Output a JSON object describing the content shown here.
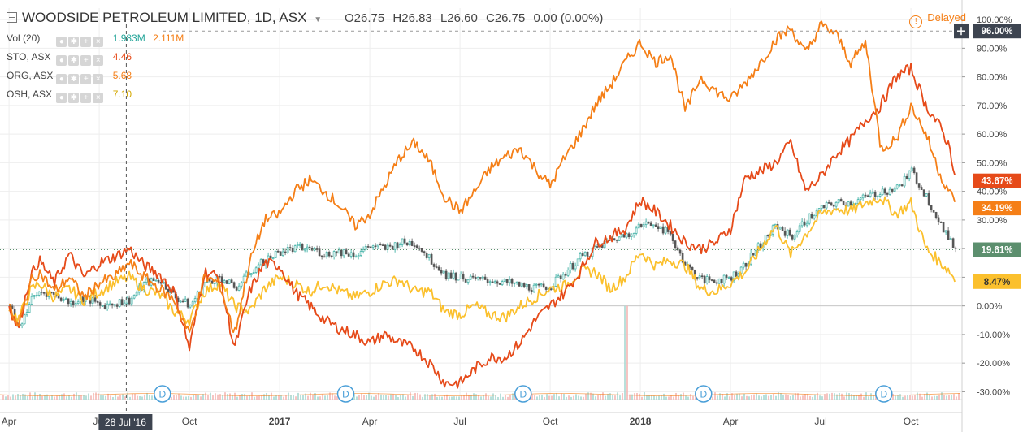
{
  "header": {
    "title": "WOODSIDE PETROLEUM LIMITED, 1D, ASX",
    "open": "O26.75",
    "high": "H26.83",
    "low": "L26.60",
    "close": "C26.75",
    "change": "0.00 (0.00%)",
    "delayed": "Delayed"
  },
  "legend": [
    {
      "label": "Vol (20)",
      "value": "1.983M",
      "value2": "2.111M",
      "color": "#26a69a",
      "color2": "#f57f17"
    },
    {
      "label": "STO, ASX",
      "value": "4.46",
      "color": "#e64a19"
    },
    {
      "label": "ORG, ASX",
      "value": "5.68",
      "color": "#f57f17"
    },
    {
      "label": "OSH, ASX",
      "value": "7.10",
      "color": "#fbc02d"
    }
  ],
  "crosshair_label": "28 Jul '16",
  "dividend_marker": "D",
  "price_badges": [
    {
      "text": "96.00%",
      "value": 96.0,
      "color": "#3d4450"
    },
    {
      "text": "43.67%",
      "value": 43.67,
      "color": "#e64a19"
    },
    {
      "text": "34.19%",
      "value": 34.19,
      "color": "#f57f17"
    },
    {
      "text": "19.61%",
      "value": 19.61,
      "color": "#5c8f6e"
    },
    {
      "text": "8.47%",
      "value": 8.47,
      "color": "#fbc02d"
    }
  ],
  "chart_data": {
    "type": "line",
    "title": "WOODSIDE PETROLEUM LIMITED, 1D, ASX",
    "x_labels": [
      "Apr",
      "Jul",
      "Oct",
      "2017",
      "Apr",
      "Jul",
      "Oct",
      "2018",
      "Apr",
      "Jul",
      "Oct"
    ],
    "x_label_t": [
      0,
      3,
      6,
      9,
      12,
      15,
      18,
      21,
      24,
      27,
      30
    ],
    "x_range": [
      -0.3,
      31.7
    ],
    "y_ticks": [
      -30,
      -20,
      -10,
      0,
      10,
      20,
      30,
      40,
      50,
      60,
      70,
      80,
      90,
      100
    ],
    "y_unit": "%",
    "ylim": [
      -33,
      104
    ],
    "grid": true,
    "crosshair_t": 3.9,
    "dividend_t": [
      5.1,
      11.2,
      17.1,
      23.1,
      29.1
    ],
    "series": [
      {
        "name": "WPL",
        "style": "candles",
        "color": "#26a69a",
        "color2": "#ef5350",
        "points": [
          [
            0,
            0
          ],
          [
            0.3,
            -8
          ],
          [
            0.7,
            2
          ],
          [
            1,
            5
          ],
          [
            1.5,
            4
          ],
          [
            2,
            1
          ],
          [
            2.5,
            3
          ],
          [
            3,
            0
          ],
          [
            3.5,
            1
          ],
          [
            4,
            2
          ],
          [
            4.5,
            8
          ],
          [
            5,
            9
          ],
          [
            5.5,
            3
          ],
          [
            6,
            0
          ],
          [
            6.5,
            8
          ],
          [
            7,
            10
          ],
          [
            7.5,
            6
          ],
          [
            8,
            12
          ],
          [
            8.5,
            16
          ],
          [
            9,
            19
          ],
          [
            9.5,
            20
          ],
          [
            10,
            20
          ],
          [
            10.5,
            18
          ],
          [
            11,
            19
          ],
          [
            11.5,
            18
          ],
          [
            12,
            21
          ],
          [
            12.5,
            20
          ],
          [
            13,
            22
          ],
          [
            13.5,
            22
          ],
          [
            14,
            16
          ],
          [
            14.5,
            11
          ],
          [
            15,
            10
          ],
          [
            15.5,
            9
          ],
          [
            16,
            9
          ],
          [
            16.5,
            8
          ],
          [
            17,
            7
          ],
          [
            17.5,
            6
          ],
          [
            18,
            7
          ],
          [
            18.5,
            12
          ],
          [
            19,
            17
          ],
          [
            19.5,
            20
          ],
          [
            20,
            23
          ],
          [
            20.5,
            25
          ],
          [
            21,
            28
          ],
          [
            21.5,
            29
          ],
          [
            22,
            24
          ],
          [
            22.5,
            14
          ],
          [
            23,
            9
          ],
          [
            23.5,
            9
          ],
          [
            24,
            10
          ],
          [
            24.5,
            15
          ],
          [
            25,
            22
          ],
          [
            25.5,
            28
          ],
          [
            26,
            24
          ],
          [
            26.5,
            30
          ],
          [
            27,
            34
          ],
          [
            27.5,
            36
          ],
          [
            28,
            36
          ],
          [
            28.5,
            38
          ],
          [
            29,
            40
          ],
          [
            29.5,
            41
          ],
          [
            30,
            47
          ],
          [
            30.5,
            38
          ],
          [
            31,
            28
          ],
          [
            31.3,
            22
          ],
          [
            31.5,
            19.61
          ]
        ]
      },
      {
        "name": "STO",
        "color": "#e64a19",
        "points": [
          [
            0,
            0
          ],
          [
            0.3,
            -8
          ],
          [
            0.7,
            10
          ],
          [
            1,
            16
          ],
          [
            1.5,
            8
          ],
          [
            2,
            18
          ],
          [
            2.5,
            10
          ],
          [
            3,
            15
          ],
          [
            3.5,
            17
          ],
          [
            4,
            20
          ],
          [
            4.5,
            14
          ],
          [
            5,
            11
          ],
          [
            5.5,
            5
          ],
          [
            6,
            -15
          ],
          [
            6.5,
            12
          ],
          [
            7,
            10
          ],
          [
            7.5,
            -15
          ],
          [
            8,
            5
          ],
          [
            8.5,
            15
          ],
          [
            9,
            14
          ],
          [
            9.5,
            5
          ],
          [
            10,
            0
          ],
          [
            10.5,
            -5
          ],
          [
            11,
            -8
          ],
          [
            11.5,
            -10
          ],
          [
            12,
            -13
          ],
          [
            12.5,
            -10
          ],
          [
            13,
            -13
          ],
          [
            13.5,
            -15
          ],
          [
            14,
            -20
          ],
          [
            14.5,
            -27
          ],
          [
            15,
            -27
          ],
          [
            15.5,
            -22
          ],
          [
            16,
            -18
          ],
          [
            16.5,
            -18
          ],
          [
            17,
            -13
          ],
          [
            17.5,
            -5
          ],
          [
            18,
            0
          ],
          [
            18.5,
            5
          ],
          [
            19,
            12
          ],
          [
            19.5,
            22
          ],
          [
            20,
            24
          ],
          [
            20.5,
            27
          ],
          [
            21,
            37
          ],
          [
            21.5,
            33
          ],
          [
            22,
            28
          ],
          [
            22.5,
            22
          ],
          [
            23,
            20
          ],
          [
            23.5,
            22
          ],
          [
            24,
            27
          ],
          [
            24.5,
            45
          ],
          [
            25,
            47
          ],
          [
            25.5,
            50
          ],
          [
            26,
            57
          ],
          [
            26.5,
            40
          ],
          [
            27,
            45
          ],
          [
            27.5,
            53
          ],
          [
            28,
            58
          ],
          [
            28.5,
            65
          ],
          [
            29,
            70
          ],
          [
            29.5,
            80
          ],
          [
            30,
            83
          ],
          [
            30.5,
            70
          ],
          [
            31,
            62
          ],
          [
            31.3,
            55
          ],
          [
            31.5,
            43.67
          ]
        ]
      },
      {
        "name": "ORG",
        "color": "#f57f17",
        "points": [
          [
            0,
            0
          ],
          [
            0.3,
            -8
          ],
          [
            0.7,
            8
          ],
          [
            1,
            12
          ],
          [
            1.5,
            5
          ],
          [
            2,
            10
          ],
          [
            2.5,
            3
          ],
          [
            3,
            8
          ],
          [
            3.5,
            10
          ],
          [
            4,
            15
          ],
          [
            4.5,
            10
          ],
          [
            5,
            6
          ],
          [
            5.5,
            2
          ],
          [
            6,
            -10
          ],
          [
            6.5,
            10
          ],
          [
            7,
            8
          ],
          [
            7.5,
            -10
          ],
          [
            8,
            15
          ],
          [
            8.5,
            30
          ],
          [
            9,
            32
          ],
          [
            9.5,
            40
          ],
          [
            10,
            44
          ],
          [
            10.5,
            40
          ],
          [
            11,
            35
          ],
          [
            11.5,
            28
          ],
          [
            12,
            32
          ],
          [
            12.5,
            42
          ],
          [
            13,
            52
          ],
          [
            13.5,
            57
          ],
          [
            14,
            50
          ],
          [
            14.5,
            38
          ],
          [
            15,
            33
          ],
          [
            15.5,
            40
          ],
          [
            16,
            48
          ],
          [
            16.5,
            52
          ],
          [
            17,
            55
          ],
          [
            17.5,
            48
          ],
          [
            18,
            42
          ],
          [
            18.5,
            52
          ],
          [
            19,
            60
          ],
          [
            19.5,
            70
          ],
          [
            20,
            77
          ],
          [
            20.5,
            85
          ],
          [
            21,
            92
          ],
          [
            21.5,
            85
          ],
          [
            22,
            88
          ],
          [
            22.5,
            68
          ],
          [
            23,
            80
          ],
          [
            23.5,
            75
          ],
          [
            24,
            72
          ],
          [
            24.5,
            78
          ],
          [
            25,
            85
          ],
          [
            25.5,
            93
          ],
          [
            26,
            97
          ],
          [
            26.5,
            88
          ],
          [
            27,
            98
          ],
          [
            27.5,
            95
          ],
          [
            28,
            85
          ],
          [
            28.5,
            92
          ],
          [
            29,
            55
          ],
          [
            29.5,
            58
          ],
          [
            30,
            70
          ],
          [
            30.5,
            60
          ],
          [
            31,
            45
          ],
          [
            31.3,
            40
          ],
          [
            31.5,
            34.19
          ]
        ]
      },
      {
        "name": "OSH",
        "color": "#fbc02d",
        "points": [
          [
            0,
            0
          ],
          [
            0.3,
            -5
          ],
          [
            0.7,
            5
          ],
          [
            1,
            8
          ],
          [
            1.5,
            3
          ],
          [
            2,
            6
          ],
          [
            2.5,
            2
          ],
          [
            3,
            5
          ],
          [
            3.5,
            8
          ],
          [
            4,
            10
          ],
          [
            4.5,
            6
          ],
          [
            5,
            4
          ],
          [
            5.5,
            -2
          ],
          [
            6,
            -5
          ],
          [
            6.5,
            5
          ],
          [
            7,
            8
          ],
          [
            7.5,
            0
          ],
          [
            8,
            -2
          ],
          [
            8.5,
            6
          ],
          [
            9,
            10
          ],
          [
            9.5,
            8
          ],
          [
            10,
            5
          ],
          [
            10.5,
            8
          ],
          [
            11,
            5
          ],
          [
            11.5,
            3
          ],
          [
            12,
            5
          ],
          [
            12.5,
            8
          ],
          [
            13,
            9
          ],
          [
            13.5,
            5
          ],
          [
            14,
            5
          ],
          [
            14.5,
            -2
          ],
          [
            15,
            -3
          ],
          [
            15.5,
            0
          ],
          [
            16,
            -3
          ],
          [
            16.5,
            -4
          ],
          [
            17,
            0
          ],
          [
            17.5,
            3
          ],
          [
            18,
            6
          ],
          [
            18.5,
            7
          ],
          [
            19,
            12
          ],
          [
            19.5,
            12
          ],
          [
            20,
            6
          ],
          [
            20.5,
            10
          ],
          [
            21,
            19
          ],
          [
            21.5,
            14
          ],
          [
            22,
            16
          ],
          [
            22.5,
            14
          ],
          [
            23,
            6
          ],
          [
            23.5,
            5
          ],
          [
            24,
            8
          ],
          [
            24.5,
            12
          ],
          [
            25,
            20
          ],
          [
            25.5,
            28
          ],
          [
            26,
            18
          ],
          [
            26.5,
            25
          ],
          [
            27,
            32
          ],
          [
            27.5,
            34
          ],
          [
            28,
            33
          ],
          [
            28.5,
            36
          ],
          [
            29,
            38
          ],
          [
            29.5,
            32
          ],
          [
            30,
            36
          ],
          [
            30.5,
            20
          ],
          [
            31,
            15
          ],
          [
            31.3,
            12
          ],
          [
            31.5,
            8.47
          ]
        ]
      }
    ],
    "volume_series": {
      "name": "Vol (20)",
      "style": "bars",
      "spike_t": 20.5
    }
  }
}
